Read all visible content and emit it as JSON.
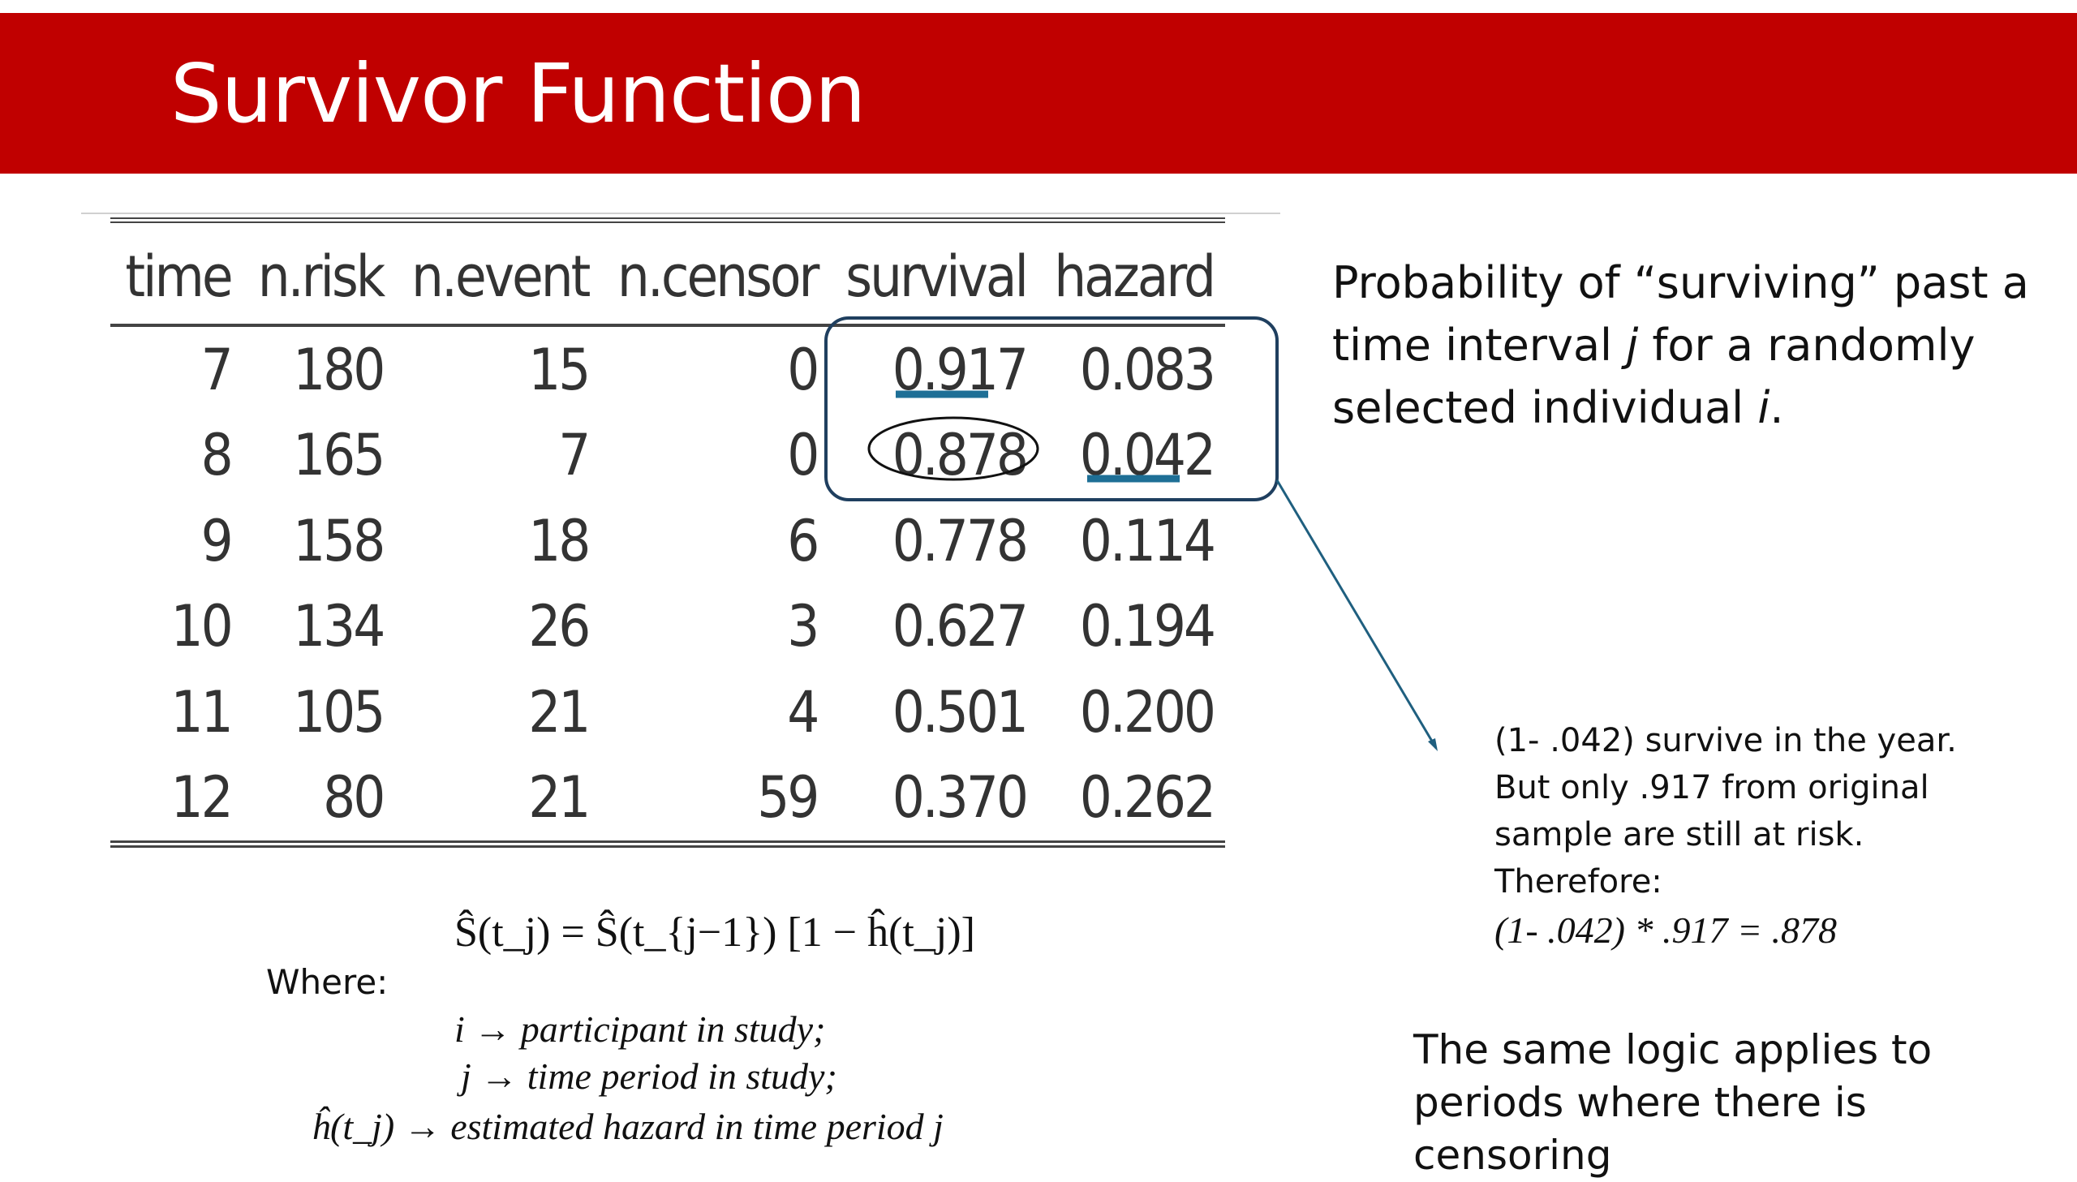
{
  "slide": {
    "title": "Survivor Function"
  },
  "table": {
    "columns": [
      "time",
      "n.risk",
      "n.event",
      "n.censor",
      "survival",
      "hazard"
    ],
    "rows": [
      [
        "7",
        "180",
        "15",
        "0",
        "0.917",
        "0.083"
      ],
      [
        "8",
        "165",
        "7",
        "0",
        "0.878",
        "0.042"
      ],
      [
        "9",
        "158",
        "18",
        "6",
        "0.778",
        "0.114"
      ],
      [
        "10",
        "134",
        "26",
        "3",
        "0.627",
        "0.194"
      ],
      [
        "11",
        "105",
        "21",
        "4",
        "0.501",
        "0.200"
      ],
      [
        "12",
        "80",
        "21",
        "59",
        "0.370",
        "0.262"
      ]
    ]
  },
  "colors": {
    "banner": "#c00000",
    "highlight": "#1f5f7f",
    "underline": "#1e6f96"
  },
  "explanation": {
    "prob_part1": "Probability of “surviving” past a time interval ",
    "prob_j": "j",
    "prob_part2": " for a randomly selected individual ",
    "prob_i": "i",
    "prob_end": ".",
    "calc_lines": [
      "(1- .042)  survive in the year.",
      "But only .917 from original",
      "sample are still at risk.",
      "Therefore:"
    ],
    "calc_formula": "(1- .042) * .917  = .878",
    "logic_note": "The same logic applies to periods where there is censoring"
  },
  "formula": {
    "main": "Ŝ(t_j) = Ŝ(t_{j−1}) [1 − ĥ(t_j)]",
    "where_label": "Where:",
    "def_i": "i  → participant in study;",
    "def_j": "j → time period in study;",
    "def_h": "ĥ(t_j) → estimated hazard in time period j"
  }
}
